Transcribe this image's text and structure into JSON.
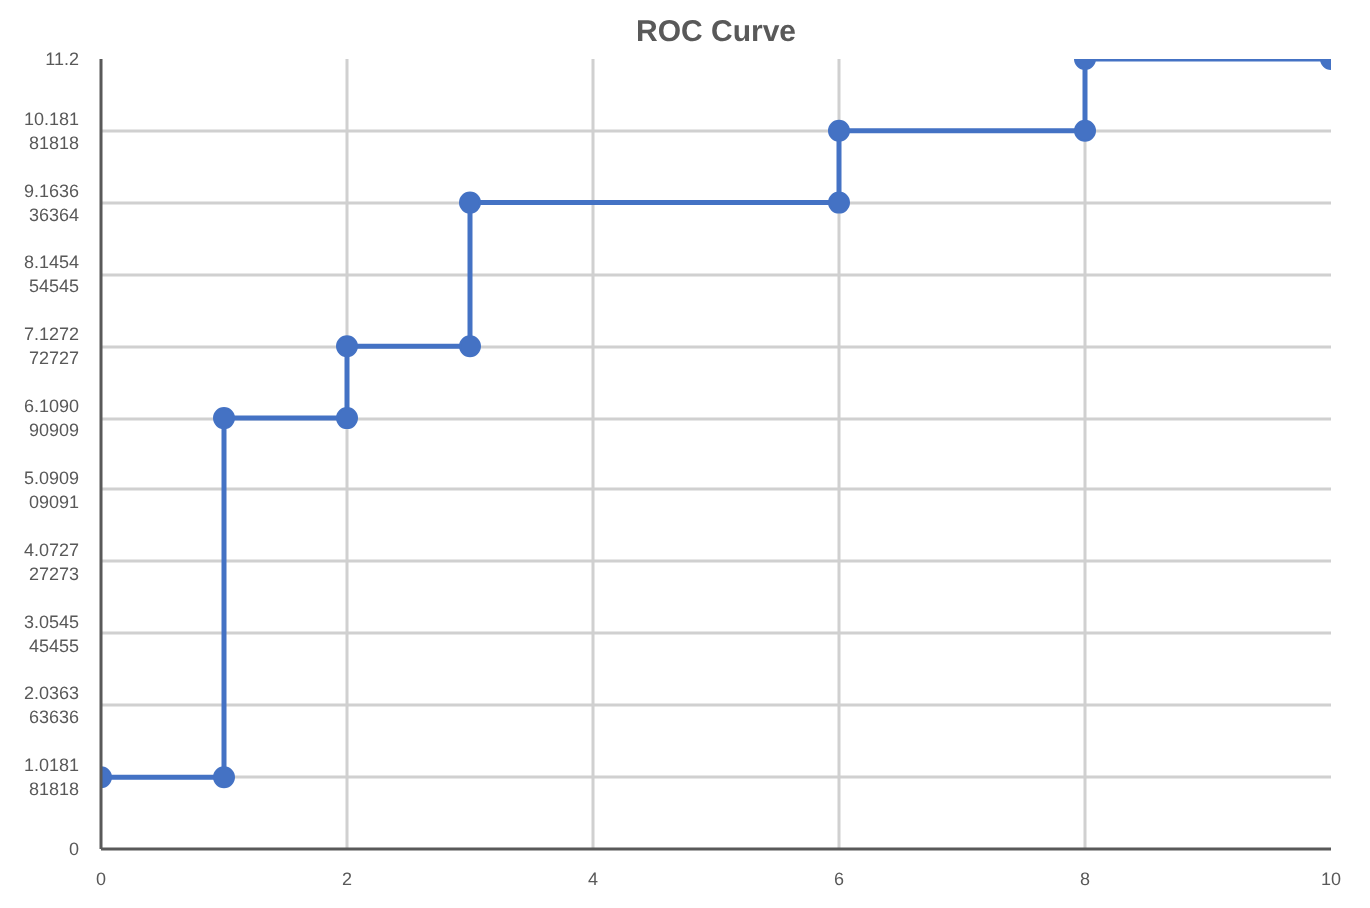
{
  "chart_data": {
    "type": "line",
    "title": "ROC Curve",
    "x": [
      0,
      1,
      1,
      2,
      2,
      3,
      3,
      6,
      6,
      8,
      8,
      10
    ],
    "series": [
      {
        "color": "#4472c4",
        "values": [
          1.018,
          1.018,
          6.109,
          6.109,
          7.127,
          7.127,
          9.164,
          9.164,
          10.182,
          10.182,
          11.2,
          11.2
        ]
      }
    ],
    "xlim": [
      0,
      10
    ],
    "xticks": [
      0,
      2,
      4,
      6,
      8,
      10
    ],
    "ylim": [
      0,
      11.2
    ],
    "yticks": [
      0,
      {
        "value": 1.018181818,
        "label": "1.018181818"
      },
      {
        "value": 2.036363636,
        "label": "2.036363636"
      },
      {
        "value": 3.054545455,
        "label": "3.054545455"
      },
      {
        "value": 4.072727273,
        "label": "4.072727273"
      },
      {
        "value": 5.090909091,
        "label": "5.090909091"
      },
      {
        "value": 6.109090909,
        "label": "6.109090909"
      },
      {
        "value": 7.127272727,
        "label": "7.127272727"
      },
      {
        "value": 8.145454545,
        "label": "8.145454545"
      },
      {
        "value": 9.163636364,
        "label": "9.163636364"
      },
      {
        "value": 10.18181818,
        "label": "10.18181818"
      },
      11.2
    ],
    "grid": true,
    "marker": "circle",
    "line_style": "solid"
  }
}
